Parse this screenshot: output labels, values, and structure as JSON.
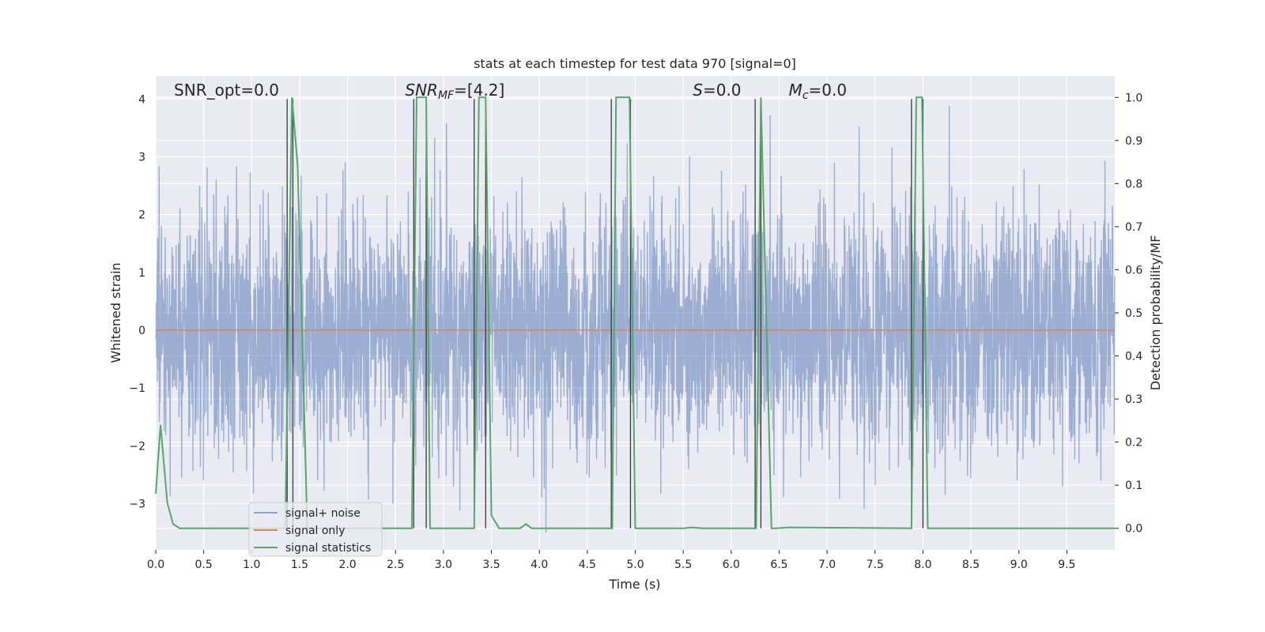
{
  "chart_data": {
    "type": "line",
    "title": "stats at each timestep for test data 970 [signal=0]",
    "xlabel": "Time (s)",
    "ylabel_left": "Whitened strain",
    "ylabel_right": "Detection probability/MF",
    "xlim": [
      0.0,
      10.0
    ],
    "ylim_left": [
      -3.8,
      4.4
    ],
    "ylim_right": [
      -0.05,
      1.05
    ],
    "x_ticks": [
      0.0,
      0.5,
      1.0,
      1.5,
      2.0,
      2.5,
      3.0,
      3.5,
      4.0,
      4.5,
      5.0,
      5.5,
      6.0,
      6.5,
      7.0,
      7.5,
      8.0,
      8.5,
      9.0,
      9.5
    ],
    "x_tick_labels": [
      "0.0",
      "0.5",
      "1.0",
      "1.5",
      "2.0",
      "2.5",
      "3.0",
      "3.5",
      "4.0",
      "4.5",
      "5.0",
      "5.5",
      "6.0",
      "6.5",
      "7.0",
      "7.5",
      "8.0",
      "8.5",
      "9.0",
      "9.5"
    ],
    "y_left_ticks": [
      -3,
      -2,
      -1,
      0,
      1,
      2,
      3,
      4
    ],
    "y_left_tick_labels": [
      "−3",
      "−2",
      "−1",
      "0",
      "1",
      "2",
      "3",
      "4"
    ],
    "y_right_ticks": [
      0.0,
      0.1,
      0.2,
      0.3,
      0.4,
      0.5,
      0.6,
      0.7,
      0.8,
      0.9,
      1.0
    ],
    "y_right_tick_labels": [
      "0.0",
      "0.1",
      "0.2",
      "0.3",
      "0.4",
      "0.5",
      "0.6",
      "0.7",
      "0.8",
      "0.9",
      "1.0"
    ],
    "grid": true,
    "legend_position": "lower-left",
    "series": [
      {
        "name": "signal+ noise",
        "color": "#4c72b0",
        "axis": "left",
        "description_noise": "whitened strain noise, approx. normal with std 1.0, range about -3.5 to 4.0, sampled densely over 0-10 s"
      },
      {
        "name": "signal only",
        "color": "#dd8452",
        "axis": "left",
        "x": [
          0.0,
          10.0
        ],
        "y": [
          0.0,
          0.0
        ]
      },
      {
        "name": "signal statistics",
        "color": "#55a868",
        "axis": "right",
        "x": [
          0.0,
          0.05,
          0.12,
          0.18,
          0.25,
          1.35,
          1.42,
          1.48,
          1.58,
          2.67,
          2.72,
          2.82,
          2.86,
          3.32,
          3.37,
          3.44,
          3.5,
          3.58,
          3.8,
          3.86,
          3.92,
          4.76,
          4.8,
          4.94,
          5.0,
          5.5,
          5.6,
          5.7,
          6.26,
          6.31,
          6.42,
          6.46,
          6.6,
          7.88,
          7.93,
          7.99,
          8.05,
          10.0
        ],
        "y": [
          0.08,
          0.24,
          0.06,
          0.01,
          0.0,
          0.0,
          1.0,
          0.84,
          0.0,
          0.0,
          1.0,
          1.0,
          0.0,
          0.0,
          1.0,
          1.0,
          0.03,
          0.0,
          0.0,
          0.01,
          0.0,
          0.0,
          1.0,
          1.0,
          0.0,
          0.0,
          0.002,
          0.0,
          0.0,
          1.0,
          0.0,
          0.0,
          0.002,
          0.0,
          1.0,
          1.0,
          0.0,
          0.0
        ]
      }
    ],
    "vertical_lines": {
      "color": "#3a3a3a",
      "x": [
        1.37,
        1.43,
        2.69,
        2.82,
        3.32,
        3.44,
        4.75,
        4.95,
        6.25,
        6.31,
        7.88,
        8.0
      ],
      "y_top": 4.0
    },
    "annotations": [
      {
        "parts": [
          {
            "text": "SNR_opt=0.0",
            "italic": false
          }
        ],
        "x": 0.19
      },
      {
        "parts": [
          {
            "text": "SNR",
            "italic": true
          },
          {
            "text": "MF",
            "italic": true,
            "sub": true
          },
          {
            "text": "=[4.2]",
            "italic": false
          }
        ],
        "x": 2.6
      },
      {
        "parts": [
          {
            "text": "S",
            "italic": true
          },
          {
            "text": "=0.0",
            "italic": false
          }
        ],
        "x": 5.6
      },
      {
        "parts": [
          {
            "text": "M",
            "italic": true
          },
          {
            "text": "c",
            "italic": true,
            "sub": true
          },
          {
            "text": "=0.0",
            "italic": false
          }
        ],
        "x": 6.6
      }
    ]
  }
}
